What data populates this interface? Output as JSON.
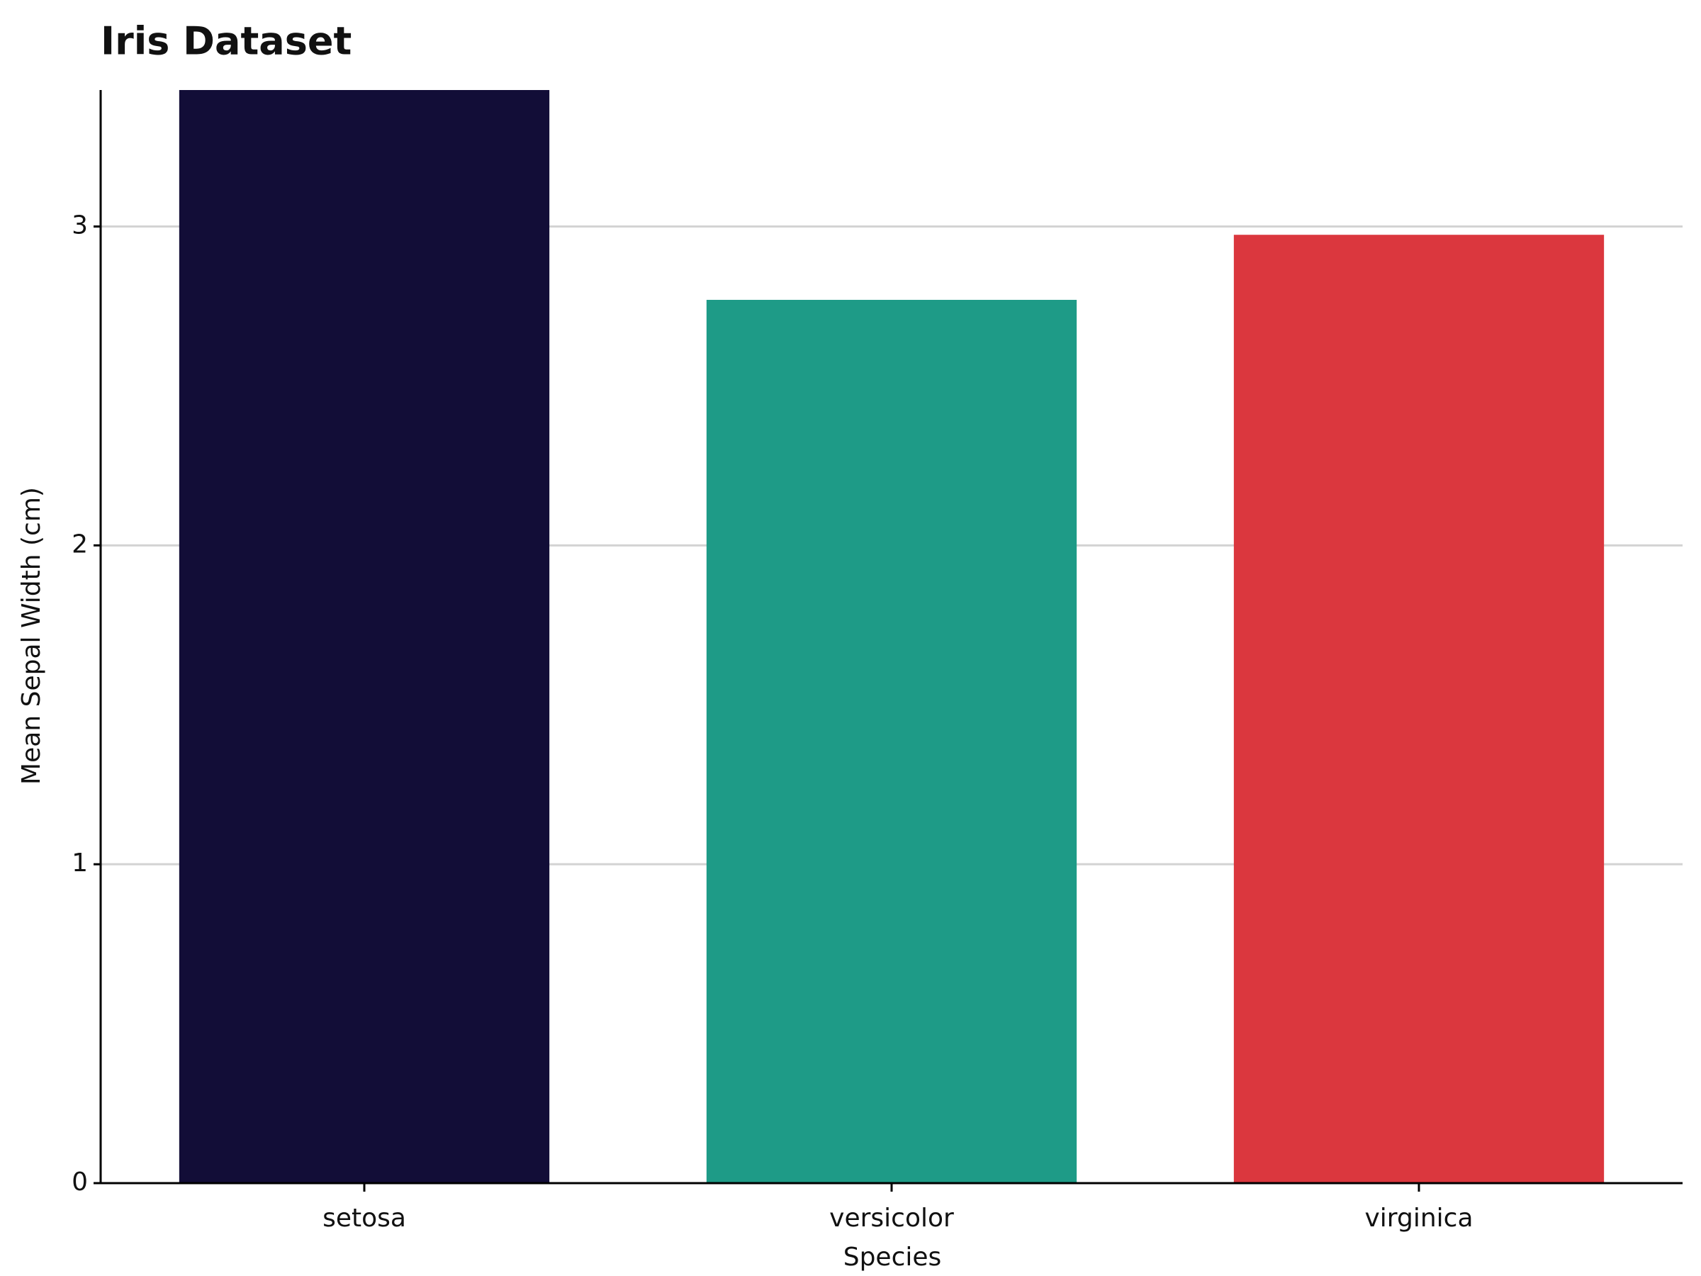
{
  "chart_data": {
    "type": "bar",
    "title": "Iris Dataset",
    "x_label": "Species",
    "y_label": "Mean Sepal Width (cm)",
    "categories": [
      "setosa",
      "versicolor",
      "virginica"
    ],
    "values": [
      3.428,
      2.77,
      2.974
    ],
    "colors": [
      "#120d37",
      "#1e9b87",
      "#db373e"
    ],
    "ylim": [
      0,
      3.428
    ],
    "yticks": [
      0,
      1,
      2,
      3
    ],
    "grid": true
  }
}
